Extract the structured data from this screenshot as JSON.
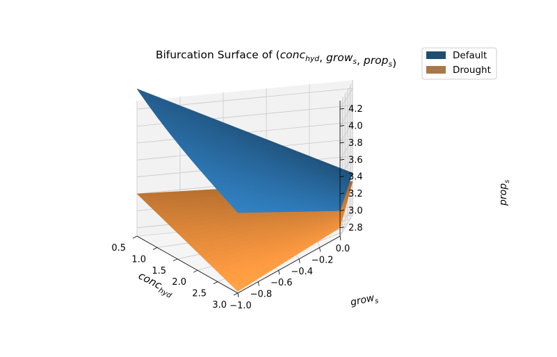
{
  "chart_data": {
    "type": "surface3d",
    "title": "Bifurcation Surface of (conc_hyd, grow_s, prop_s)",
    "xlabel": "conc_hyd",
    "ylabel": "grow_s",
    "zlabel": "prop_s",
    "xlim": [
      0.5,
      3.0
    ],
    "ylim": [
      -1.0,
      0.0
    ],
    "zlim": [
      2.7,
      4.3
    ],
    "x_ticks": [
      "0.5",
      "1.0",
      "1.5",
      "2.0",
      "2.5",
      "3.0"
    ],
    "y_ticks": [
      "−1.0",
      "−0.8",
      "−0.6",
      "−0.4",
      "−0.2",
      "0.0"
    ],
    "z_ticks": [
      "2.8",
      "3.0",
      "3.2",
      "3.4",
      "3.6",
      "3.8",
      "4.0",
      "4.2"
    ],
    "grid": true,
    "legend_position": "top-right",
    "series": [
      {
        "name": "Default",
        "color": "#2d77b4",
        "legend_color": "#1f4e70",
        "corners": {
          "x0.5_y-1.0": 4.3,
          "x0.5_y0.0": 3.2,
          "x3.0_y-1.0": 3.65,
          "x3.0_y0.0": 3.0
        }
      },
      {
        "name": "Drought",
        "color": "#f5953f",
        "legend_color": "#a87849",
        "corners": {
          "x0.5_y-1.0": 3.2,
          "x0.5_y0.0": 3.1,
          "x3.0_y-1.0": 2.72,
          "x3.0_y0.0": 2.8
        }
      }
    ]
  }
}
